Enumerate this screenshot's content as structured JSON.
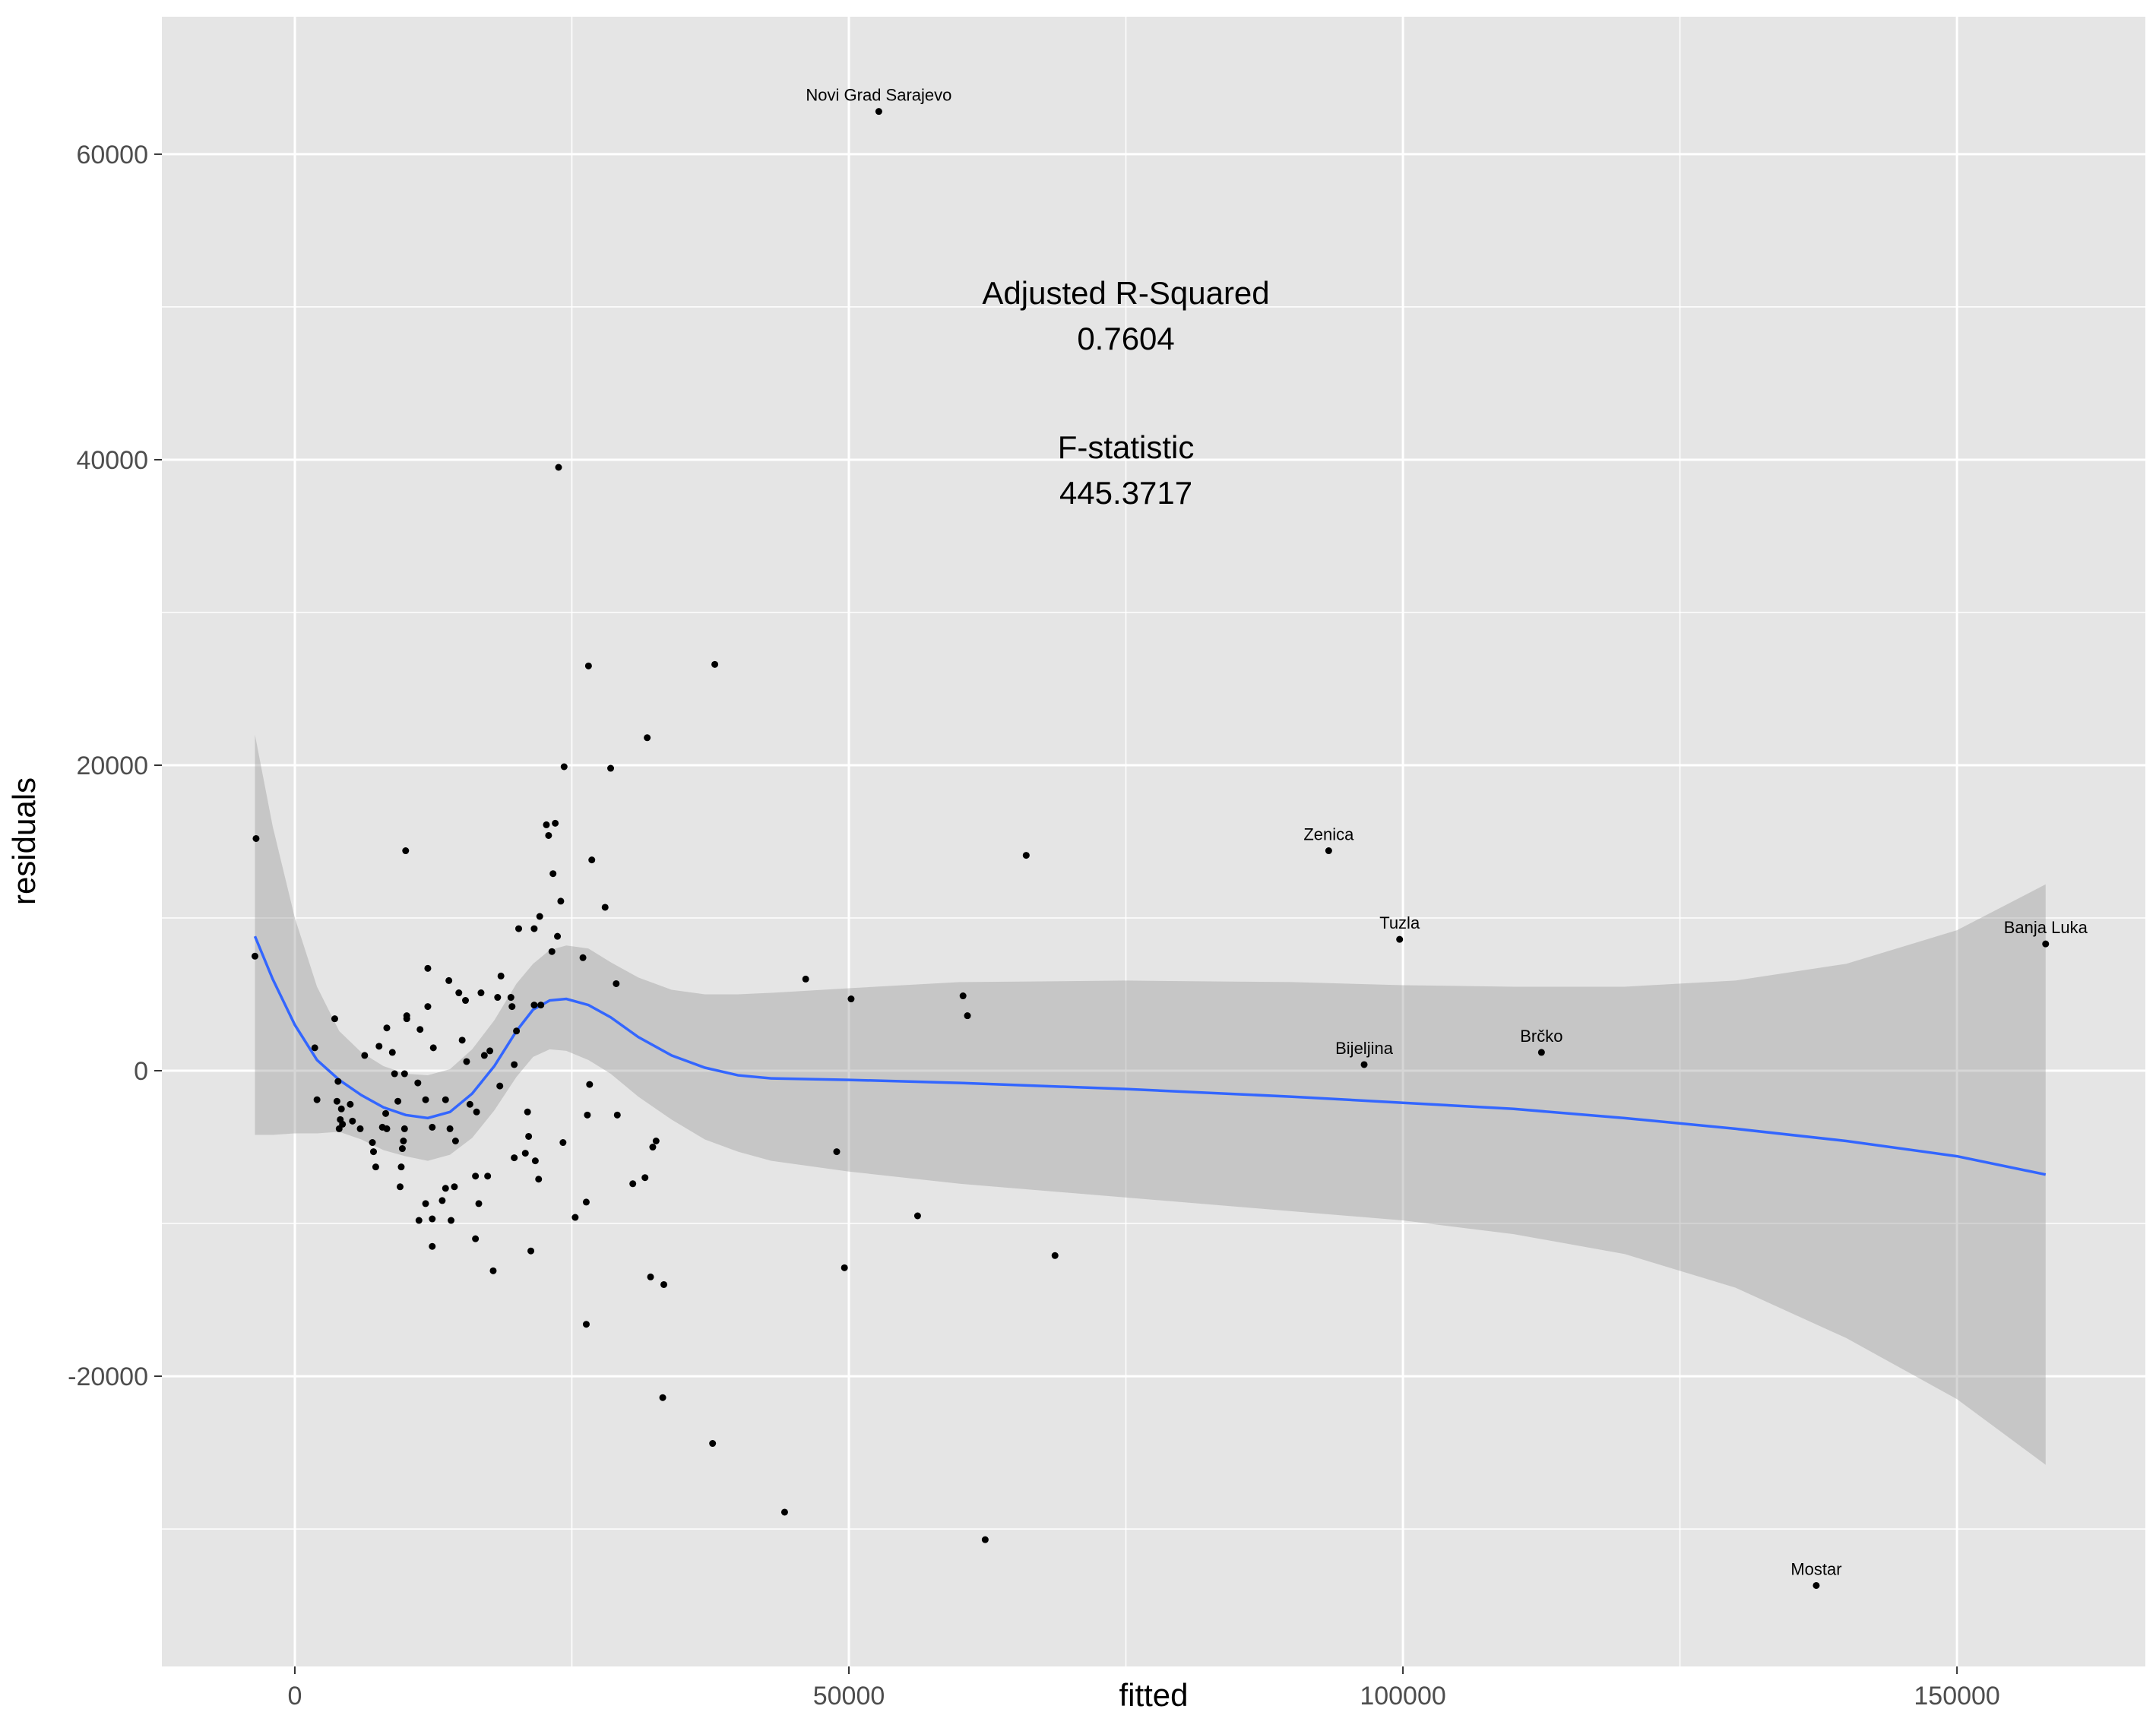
{
  "chart_data": {
    "type": "scatter",
    "xlabel": "fitted",
    "ylabel": "residuals",
    "xlim": [
      -12000,
      167000
    ],
    "ylim": [
      -39000,
      69000
    ],
    "x_ticks": [
      0,
      50000,
      100000,
      150000
    ],
    "x_tick_labels": [
      "0",
      "50000",
      "100000",
      "150000"
    ],
    "y_ticks": [
      -20000,
      0,
      20000,
      40000,
      60000
    ],
    "y_tick_labels": [
      "-20000",
      "0",
      "20000",
      "40000",
      "60000"
    ],
    "grid": true,
    "annotations": [
      {
        "lines": [
          "Adjusted R-Squared",
          "0.7604"
        ],
        "x": 75000,
        "y": 48700
      },
      {
        "lines": [
          "F-statistic",
          "445.3717"
        ],
        "x": 75000,
        "y": 38600
      }
    ],
    "series": [
      {
        "points": [
          [
            -3500,
            15200
          ],
          [
            -3600,
            7500
          ],
          [
            1800,
            1500
          ],
          [
            2000,
            -1900
          ],
          [
            3600,
            3400
          ],
          [
            3900,
            -700
          ],
          [
            3800,
            -2000
          ],
          [
            4100,
            -3200
          ],
          [
            4000,
            -3800
          ],
          [
            4300,
            -3500
          ],
          [
            4200,
            -2500
          ],
          [
            5200,
            -3300
          ],
          [
            5000,
            -2200
          ],
          [
            5900,
            -3800
          ],
          [
            6300,
            1000
          ],
          [
            7000,
            -4700
          ],
          [
            7100,
            -5300
          ],
          [
            7300,
            -6300
          ],
          [
            7600,
            1600
          ],
          [
            7900,
            -3700
          ],
          [
            8200,
            -2800
          ],
          [
            8300,
            2800
          ],
          [
            8300,
            -3800
          ],
          [
            8800,
            1200
          ],
          [
            9000,
            -200
          ],
          [
            9300,
            -2000
          ],
          [
            9500,
            -7600
          ],
          [
            9600,
            -6300
          ],
          [
            9700,
            -5100
          ],
          [
            9800,
            -4600
          ],
          [
            9900,
            -3800
          ],
          [
            9900,
            -200
          ],
          [
            10100,
            3400
          ],
          [
            10100,
            3600
          ],
          [
            10000,
            14400
          ],
          [
            11100,
            -800
          ],
          [
            11300,
            2700
          ],
          [
            11200,
            -9800
          ],
          [
            11800,
            -8700
          ],
          [
            11800,
            -1900
          ],
          [
            12000,
            4200
          ],
          [
            12000,
            6700
          ],
          [
            12400,
            -11500
          ],
          [
            12400,
            -3700
          ],
          [
            12400,
            -9700
          ],
          [
            12500,
            1500
          ],
          [
            13300,
            -8500
          ],
          [
            13600,
            -1900
          ],
          [
            13600,
            -7700
          ],
          [
            13900,
            5900
          ],
          [
            14100,
            -9800
          ],
          [
            14000,
            -3800
          ],
          [
            14500,
            -4600
          ],
          [
            14400,
            -7600
          ],
          [
            14800,
            5100
          ],
          [
            15100,
            2000
          ],
          [
            15400,
            4600
          ],
          [
            15500,
            600
          ],
          [
            15800,
            -2200
          ],
          [
            16300,
            -11000
          ],
          [
            16300,
            -6900
          ],
          [
            16400,
            -2700
          ],
          [
            16600,
            -8700
          ],
          [
            16800,
            5100
          ],
          [
            17100,
            1000
          ],
          [
            17400,
            -6900
          ],
          [
            17600,
            1300
          ],
          [
            17900,
            -13100
          ],
          [
            18300,
            4800
          ],
          [
            18500,
            -1000
          ],
          [
            18600,
            6200
          ],
          [
            19500,
            4800
          ],
          [
            19600,
            4200
          ],
          [
            19800,
            -5700
          ],
          [
            19800,
            400
          ],
          [
            20000,
            2600
          ],
          [
            20200,
            9300
          ],
          [
            20800,
            -5400
          ],
          [
            21000,
            -2700
          ],
          [
            21100,
            -4300
          ],
          [
            21300,
            -11800
          ],
          [
            21600,
            9300
          ],
          [
            21600,
            4300
          ],
          [
            21700,
            -5900
          ],
          [
            22000,
            -7100
          ],
          [
            22100,
            10100
          ],
          [
            22200,
            4300
          ],
          [
            22700,
            16100
          ],
          [
            22900,
            15400
          ],
          [
            23200,
            7800
          ],
          [
            23300,
            12900
          ],
          [
            23500,
            16200
          ],
          [
            23700,
            8800
          ],
          [
            23800,
            39500
          ],
          [
            24000,
            11100
          ],
          [
            24200,
            -4700
          ],
          [
            24300,
            19900
          ],
          [
            25300,
            -9600
          ],
          [
            26000,
            7400
          ],
          [
            26300,
            -16600
          ],
          [
            26300,
            -8600
          ],
          [
            26400,
            -2900
          ],
          [
            26500,
            26500
          ],
          [
            26600,
            -900
          ],
          [
            26800,
            13800
          ],
          [
            28000,
            10700
          ],
          [
            28500,
            19800
          ],
          [
            29000,
            5700
          ],
          [
            29100,
            -2900
          ],
          [
            30500,
            -7400
          ],
          [
            31600,
            -7000
          ],
          [
            31800,
            21800
          ],
          [
            32100,
            -13500
          ],
          [
            32300,
            -5000
          ],
          [
            32600,
            -4600
          ],
          [
            33200,
            -21400
          ],
          [
            33300,
            -14000
          ],
          [
            37700,
            -24400
          ],
          [
            37900,
            26600
          ],
          [
            44200,
            -28900
          ],
          [
            46100,
            6000
          ],
          [
            48900,
            -5300
          ],
          [
            49600,
            -12900
          ],
          [
            50200,
            4700
          ],
          [
            52700,
            62800
          ],
          [
            56200,
            -9500
          ],
          [
            60300,
            4900
          ],
          [
            60700,
            3600
          ],
          [
            62300,
            -30700
          ],
          [
            66000,
            14100
          ],
          [
            68600,
            -12100
          ],
          [
            93300,
            14400
          ],
          [
            96500,
            400
          ],
          [
            99700,
            8600
          ],
          [
            112500,
            1200
          ],
          [
            137300,
            -33700
          ],
          [
            158000,
            8300
          ]
        ],
        "labeled_points": [
          {
            "label": "Novi Grad Sarajevo",
            "x": 52700,
            "y": 62800
          },
          {
            "label": "Zenica",
            "x": 93300,
            "y": 14400
          },
          {
            "label": "Tuzla",
            "x": 99700,
            "y": 8600
          },
          {
            "label": "Banja Luka",
            "x": 158000,
            "y": 8300
          },
          {
            "label": "Bijeljina",
            "x": 96500,
            "y": 400
          },
          {
            "label": "Brčko",
            "x": 112500,
            "y": 1200
          },
          {
            "label": "Mostar",
            "x": 137300,
            "y": -33700
          }
        ]
      }
    ],
    "smooth": {
      "line_color": "#3366ff",
      "band_color": "#999999",
      "fit": [
        [
          -3600,
          8800
        ],
        [
          -2000,
          6000
        ],
        [
          0,
          3000
        ],
        [
          2000,
          700
        ],
        [
          4000,
          -600
        ],
        [
          6000,
          -1600
        ],
        [
          8000,
          -2400
        ],
        [
          10000,
          -2900
        ],
        [
          12000,
          -3100
        ],
        [
          14000,
          -2700
        ],
        [
          16000,
          -1500
        ],
        [
          18000,
          300
        ],
        [
          20000,
          2600
        ],
        [
          21500,
          4000
        ],
        [
          23000,
          4600
        ],
        [
          24500,
          4700
        ],
        [
          26500,
          4300
        ],
        [
          28500,
          3500
        ],
        [
          31000,
          2200
        ],
        [
          34000,
          1000
        ],
        [
          37000,
          200
        ],
        [
          40000,
          -300
        ],
        [
          43000,
          -500
        ],
        [
          50000,
          -600
        ],
        [
          60000,
          -800
        ],
        [
          75000,
          -1200
        ],
        [
          90000,
          -1700
        ],
        [
          100000,
          -2100
        ],
        [
          110000,
          -2500
        ],
        [
          120000,
          -3100
        ],
        [
          130000,
          -3800
        ],
        [
          140000,
          -4600
        ],
        [
          150000,
          -5600
        ],
        [
          158000,
          -6800
        ]
      ],
      "upper": [
        [
          -3600,
          22000
        ],
        [
          -2000,
          16000
        ],
        [
          0,
          10000
        ],
        [
          2000,
          5500
        ],
        [
          4000,
          2600
        ],
        [
          6000,
          1200
        ],
        [
          8000,
          300
        ],
        [
          10000,
          -200
        ],
        [
          12000,
          -300
        ],
        [
          14000,
          100
        ],
        [
          16000,
          1400
        ],
        [
          18000,
          3300
        ],
        [
          20000,
          5700
        ],
        [
          21500,
          7000
        ],
        [
          23000,
          7900
        ],
        [
          24500,
          8200
        ],
        [
          26500,
          8000
        ],
        [
          28500,
          7100
        ],
        [
          31000,
          6100
        ],
        [
          34000,
          5300
        ],
        [
          37000,
          5000
        ],
        [
          40000,
          5000
        ],
        [
          43000,
          5100
        ],
        [
          50000,
          5400
        ],
        [
          60000,
          5800
        ],
        [
          75000,
          5900
        ],
        [
          90000,
          5800
        ],
        [
          100000,
          5600
        ],
        [
          110000,
          5500
        ],
        [
          120000,
          5500
        ],
        [
          130000,
          5900
        ],
        [
          140000,
          7000
        ],
        [
          150000,
          9200
        ],
        [
          158000,
          12200
        ]
      ],
      "lower": [
        [
          -3600,
          -4200
        ],
        [
          -2000,
          -4200
        ],
        [
          0,
          -4100
        ],
        [
          2000,
          -4100
        ],
        [
          4000,
          -4000
        ],
        [
          6000,
          -4500
        ],
        [
          8000,
          -5200
        ],
        [
          10000,
          -5600
        ],
        [
          12000,
          -5900
        ],
        [
          14000,
          -5500
        ],
        [
          16000,
          -4400
        ],
        [
          18000,
          -2600
        ],
        [
          20000,
          -400
        ],
        [
          21500,
          900
        ],
        [
          23000,
          1400
        ],
        [
          24500,
          1300
        ],
        [
          26500,
          700
        ],
        [
          28500,
          -200
        ],
        [
          31000,
          -1700
        ],
        [
          34000,
          -3200
        ],
        [
          37000,
          -4500
        ],
        [
          40000,
          -5300
        ],
        [
          43000,
          -5900
        ],
        [
          50000,
          -6600
        ],
        [
          60000,
          -7400
        ],
        [
          75000,
          -8300
        ],
        [
          90000,
          -9200
        ],
        [
          100000,
          -9800
        ],
        [
          110000,
          -10700
        ],
        [
          120000,
          -12000
        ],
        [
          130000,
          -14200
        ],
        [
          140000,
          -17500
        ],
        [
          150000,
          -21500
        ],
        [
          158000,
          -25800
        ]
      ]
    }
  }
}
